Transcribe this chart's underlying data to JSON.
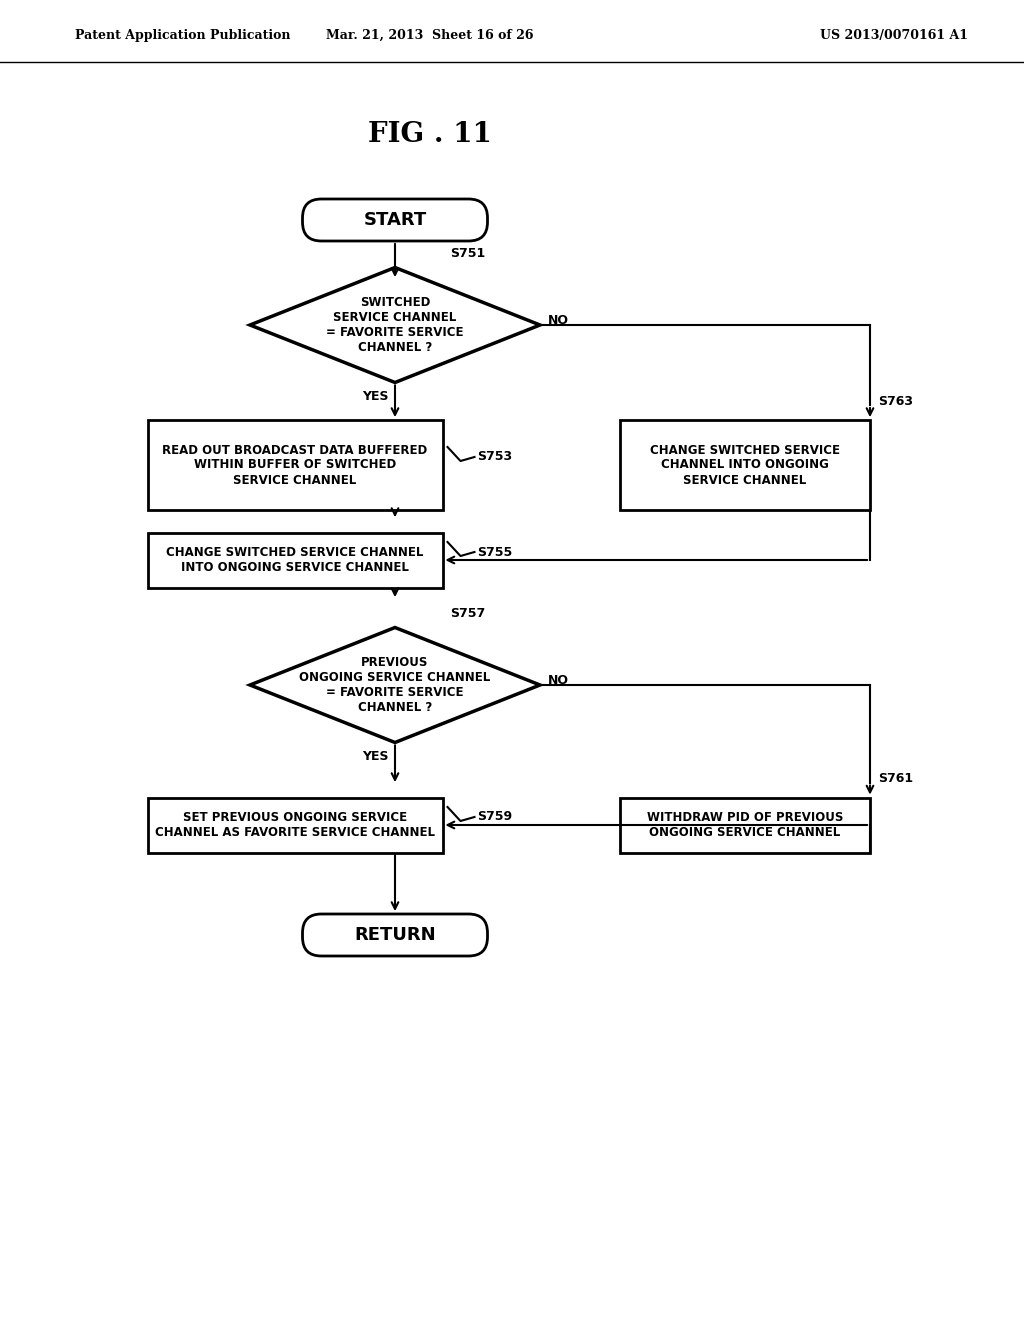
{
  "title": "FIG . 11",
  "header_left": "Patent Application Publication",
  "header_mid": "Mar. 21, 2013  Sheet 16 of 26",
  "header_right": "US 2013/0070161 A1",
  "bg_color": "#ffffff"
}
